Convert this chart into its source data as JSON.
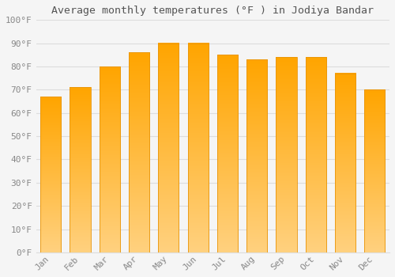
{
  "title": "Average monthly temperatures (°F ) in Jodiya Bandar",
  "months": [
    "Jan",
    "Feb",
    "Mar",
    "Apr",
    "May",
    "Jun",
    "Jul",
    "Aug",
    "Sep",
    "Oct",
    "Nov",
    "Dec"
  ],
  "values": [
    67,
    71,
    80,
    86,
    90,
    90,
    85,
    83,
    84,
    84,
    77,
    70
  ],
  "bar_color_bottom": "#FFA500",
  "bar_color_top": "#FFD080",
  "bar_edge_color": "#E8950A",
  "ylim": [
    0,
    100
  ],
  "yticks": [
    0,
    10,
    20,
    30,
    40,
    50,
    60,
    70,
    80,
    90,
    100
  ],
  "ytick_labels": [
    "0°F",
    "10°F",
    "20°F",
    "30°F",
    "40°F",
    "50°F",
    "60°F",
    "70°F",
    "80°F",
    "90°F",
    "100°F"
  ],
  "background_color": "#f5f5f5",
  "grid_color": "#dddddd",
  "title_fontsize": 9.5,
  "tick_fontsize": 8,
  "bar_width": 0.7,
  "tick_color": "#888888"
}
